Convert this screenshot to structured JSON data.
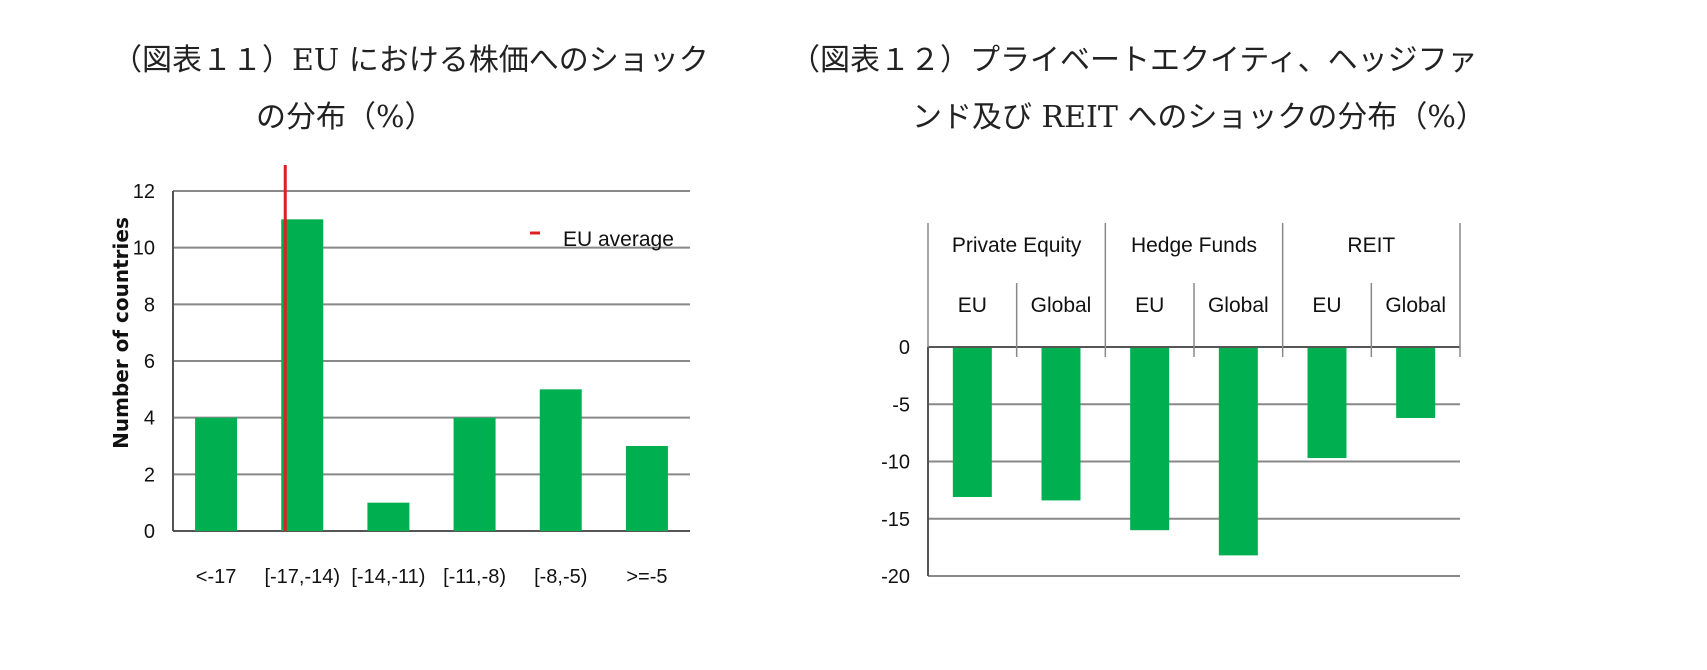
{
  "titles": {
    "left_line1": "（図表１１）EU における株価へのショック",
    "left_line2": "の分布（%）",
    "right_line1": "（図表１２）プライベートエクイティ、ヘッジファ",
    "right_line2": "ンド及び REIT へのショックの分布（%）"
  },
  "colors": {
    "bar": "#00B050",
    "avg_line": "#E02020",
    "grid": "#888888",
    "axis": "#555555"
  },
  "chart_data": [
    {
      "type": "bar",
      "categories": [
        "<-17",
        "[-17,-14)",
        "[-14,-11)",
        "[-11,-8)",
        "[-8,-5)",
        ">=-5"
      ],
      "values": [
        4,
        11,
        1,
        4,
        5,
        3
      ],
      "ylabel": "Number of countries",
      "ylim": [
        0,
        12
      ],
      "yticks": [
        0,
        2,
        4,
        6,
        8,
        10,
        12
      ],
      "annotation": {
        "label": "EU average",
        "category_index": 1,
        "legend_position": "top-right"
      },
      "grid": true
    },
    {
      "type": "bar",
      "groups": [
        "Private Equity",
        "Hedge Funds",
        "REIT"
      ],
      "subcategories": [
        "EU",
        "Global"
      ],
      "categories": [
        "EU",
        "Global",
        "EU",
        "Global",
        "EU",
        "Global"
      ],
      "values": [
        -13.1,
        -13.4,
        -16,
        -18.2,
        -9.7,
        -6.2
      ],
      "ylim": [
        -20,
        0
      ],
      "yticks": [
        0,
        -5,
        -10,
        -15,
        -20
      ],
      "grid": true
    }
  ]
}
